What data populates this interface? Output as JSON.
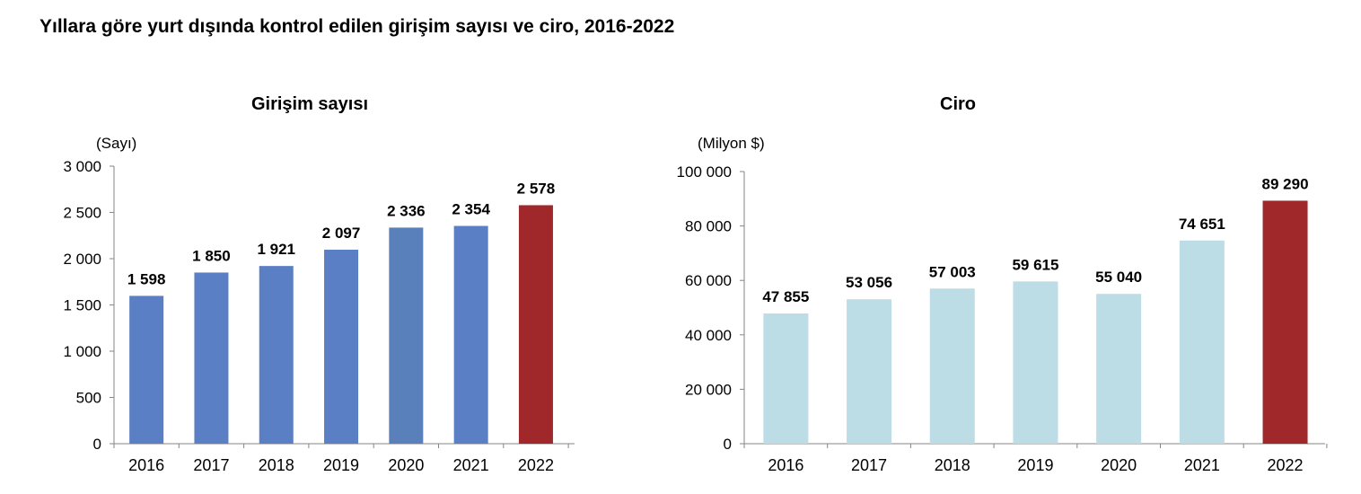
{
  "page": {
    "title": "Yıllara göre yurt dışında kontrol edilen girişim sayısı ve ciro, 2016-2022"
  },
  "chart_data": [
    {
      "type": "bar",
      "title": "Girişim sayısı",
      "unit": "(Sayı)",
      "categories": [
        "2016",
        "2017",
        "2018",
        "2019",
        "2020",
        "2021",
        "2022"
      ],
      "values": [
        1598,
        1850,
        1921,
        2097,
        2336,
        2354,
        2578
      ],
      "value_labels": [
        "1 598",
        "1 850",
        "1 921",
        "2 097",
        "2 336",
        "2 354",
        "2 578"
      ],
      "bar_colors": [
        "#5B7FC4",
        "#5B7FC4",
        "#5B7FC4",
        "#5B7FC4",
        "#5A80BB",
        "#5B7FC4",
        "#A0282A"
      ],
      "ylim": [
        0,
        3000
      ],
      "yticks": [
        0,
        500,
        1000,
        1500,
        2000,
        2500,
        3000
      ],
      "ytick_labels": [
        "0",
        "500",
        "1 000",
        "1 500",
        "2 000",
        "2 500",
        "3 000"
      ],
      "grid": false
    },
    {
      "type": "bar",
      "title": "Ciro",
      "unit": "(Milyon $)",
      "categories": [
        "2016",
        "2017",
        "2018",
        "2019",
        "2020",
        "2021",
        "2022"
      ],
      "values": [
        47855,
        53056,
        57003,
        59615,
        55040,
        74651,
        89290
      ],
      "value_labels": [
        "47 855",
        "53 056",
        "57 003",
        "59 615",
        "55 040",
        "74 651",
        "89 290"
      ],
      "bar_colors": [
        "#BCDCE6",
        "#BCDCE6",
        "#BCDCE6",
        "#BCDCE6",
        "#BCDCE6",
        "#BCDCE6",
        "#A0282A"
      ],
      "ylim": [
        0,
        100000
      ],
      "yticks": [
        0,
        20000,
        40000,
        60000,
        80000,
        100000
      ],
      "ytick_labels": [
        "0",
        "20 000",
        "40 000",
        "60 000",
        "80 000",
        "100 000"
      ],
      "grid": false
    }
  ]
}
